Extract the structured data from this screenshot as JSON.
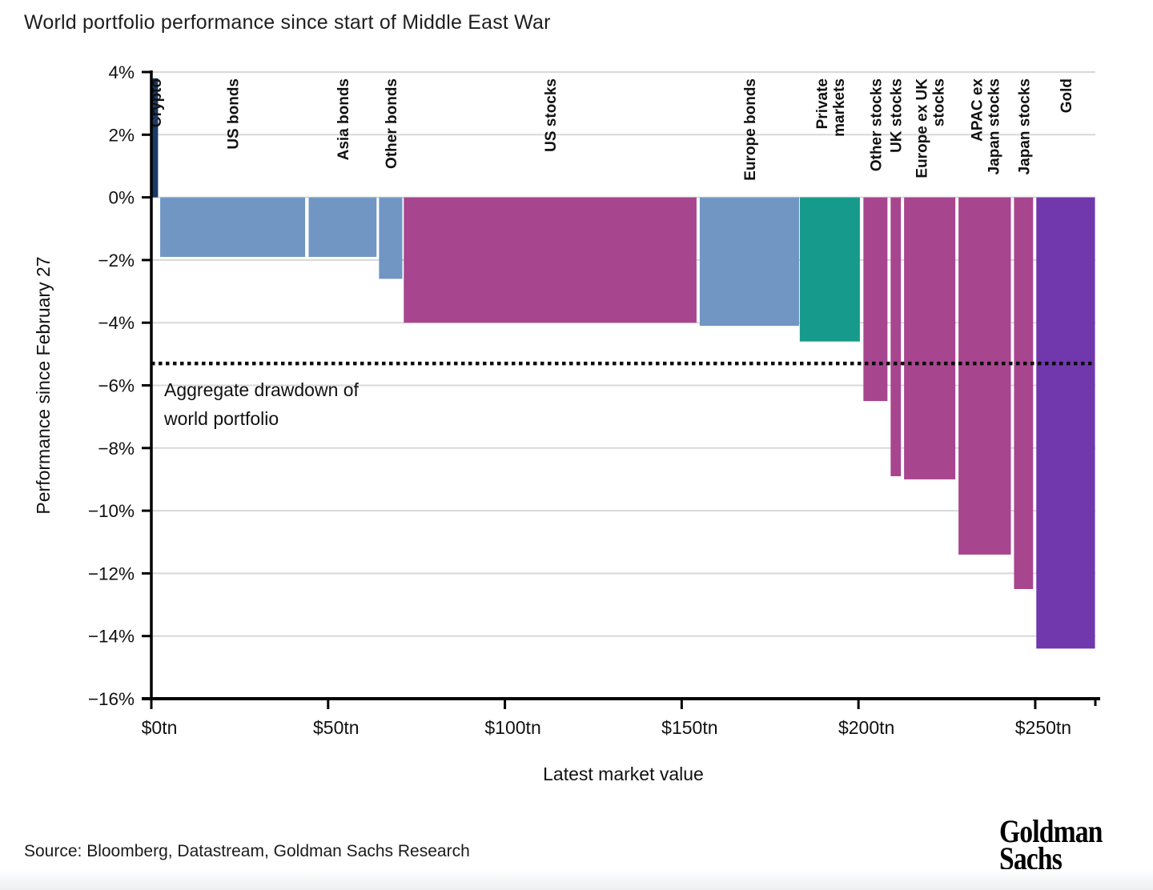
{
  "page": {
    "title": "World portfolio performance since start of Middle East War",
    "source": "Source: Bloomberg, Datastream, Goldman Sachs Research",
    "logo": {
      "line1": "Goldman",
      "line2": "Sachs"
    }
  },
  "chart_data": {
    "type": "bar",
    "variant": "variable-width bars (marimekko-style), width = market value, height = performance",
    "title": "World portfolio performance since start of Middle East War",
    "xlabel": "Latest market value",
    "ylabel": "Performance since February 27",
    "x_unit": "$tn",
    "xlim": [
      0,
      267
    ],
    "ylim": [
      -16,
      4
    ],
    "grid": "horizontal",
    "x_ticks": [
      {
        "v": 0,
        "label": "$0tn"
      },
      {
        "v": 50,
        "label": "$50tn"
      },
      {
        "v": 100,
        "label": "$100tn"
      },
      {
        "v": 150,
        "label": "$150tn"
      },
      {
        "v": 200,
        "label": "$200tn"
      },
      {
        "v": 250,
        "label": "$250tn"
      }
    ],
    "y_ticks": [
      {
        "v": 4,
        "label": "4%"
      },
      {
        "v": 2,
        "label": "2%"
      },
      {
        "v": 0,
        "label": "0%"
      },
      {
        "v": -2,
        "label": "−2%"
      },
      {
        "v": -4,
        "label": "−4%"
      },
      {
        "v": -6,
        "label": "−6%"
      },
      {
        "v": -8,
        "label": "−8%"
      },
      {
        "v": -10,
        "label": "−10%"
      },
      {
        "v": -12,
        "label": "−12%"
      },
      {
        "v": -14,
        "label": "−14%"
      },
      {
        "v": -16,
        "label": "−16%"
      }
    ],
    "annotation": {
      "line1": "Aggregate drawdown of",
      "line2": "world portfolio",
      "value_pct": -5.3,
      "style": "dotted horizontal line"
    },
    "colors": {
      "crypto": "#1a3a66",
      "bonds": "#7196c4",
      "stocks": "#a8458f",
      "private_markets": "#169a8b",
      "gold": "#7038ac",
      "grid": "#d8d8d8",
      "axis": "#000000",
      "text": "#111111"
    },
    "bars": [
      {
        "label": "Crypto",
        "lines": [
          "Crypto"
        ],
        "group": "crypto",
        "x_start_tn": 0.3,
        "x_end_tn": 1.9,
        "performance_pct": 3.8
      },
      {
        "label": "US bonds",
        "lines": [
          "US bonds"
        ],
        "group": "bonds",
        "x_start_tn": 2.5,
        "x_end_tn": 43.5,
        "performance_pct": -1.9
      },
      {
        "label": "Asia bonds",
        "lines": [
          "Asia bonds"
        ],
        "group": "bonds",
        "x_start_tn": 44.5,
        "x_end_tn": 63.7,
        "performance_pct": -1.9
      },
      {
        "label": "Other bonds",
        "lines": [
          "Other bonds"
        ],
        "group": "bonds",
        "x_start_tn": 64.4,
        "x_end_tn": 71.0,
        "performance_pct": -2.6
      },
      {
        "label": "US stocks",
        "lines": [
          "US stocks"
        ],
        "group": "stocks",
        "x_start_tn": 71.4,
        "x_end_tn": 154.2,
        "performance_pct": -4.0
      },
      {
        "label": "Europe bonds",
        "lines": [
          "Europe bonds"
        ],
        "group": "bonds",
        "x_start_tn": 155.1,
        "x_end_tn": 183.2,
        "performance_pct": -4.1
      },
      {
        "label": "Private markets",
        "lines": [
          "Private",
          "markets"
        ],
        "group": "private_markets",
        "x_start_tn": 183.4,
        "x_end_tn": 200.4,
        "performance_pct": -4.6
      },
      {
        "label": "Other stocks",
        "lines": [
          "Other stocks"
        ],
        "group": "stocks",
        "x_start_tn": 201.4,
        "x_end_tn": 208.2,
        "performance_pct": -6.5
      },
      {
        "label": "UK stocks",
        "lines": [
          "UK stocks"
        ],
        "group": "stocks",
        "x_start_tn": 209.1,
        "x_end_tn": 212.0,
        "performance_pct": -8.9
      },
      {
        "label": "Europe ex UK stocks",
        "lines": [
          "Europe ex UK",
          "stocks"
        ],
        "group": "stocks",
        "x_start_tn": 212.9,
        "x_end_tn": 227.4,
        "performance_pct": -9.0
      },
      {
        "label": "APAC ex Japan stocks",
        "lines": [
          "APAC ex",
          "Japan stocks"
        ],
        "group": "stocks",
        "x_start_tn": 228.3,
        "x_end_tn": 243.1,
        "performance_pct": -11.4
      },
      {
        "label": "Japan stocks",
        "lines": [
          "Japan stocks"
        ],
        "group": "stocks",
        "x_start_tn": 244.0,
        "x_end_tn": 249.4,
        "performance_pct": -12.5
      },
      {
        "label": "Gold",
        "lines": [
          "Gold"
        ],
        "group": "gold",
        "x_start_tn": 250.3,
        "x_end_tn": 266.9,
        "performance_pct": -14.4
      }
    ]
  }
}
